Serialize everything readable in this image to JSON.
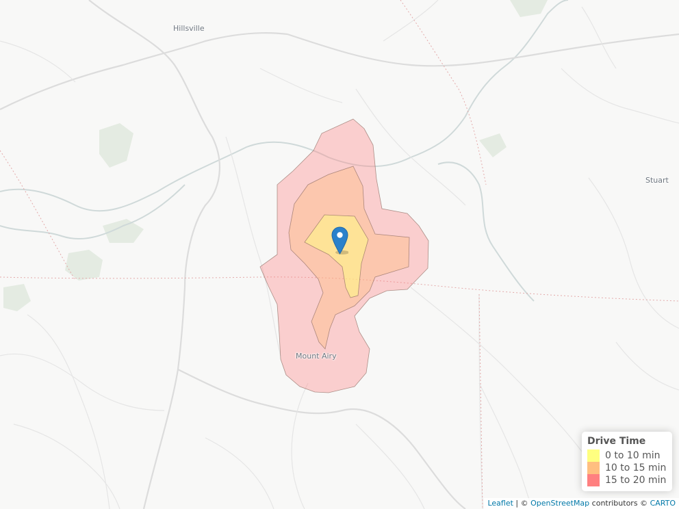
{
  "places": {
    "hillsville": "Hillsville",
    "stuart": "Stuart",
    "mount_airy": "Mount Airy"
  },
  "legend": {
    "title": "Drive Time",
    "items": [
      {
        "label": "0 to 10 min",
        "color": "#ffff80"
      },
      {
        "label": "10 to 15 min",
        "color": "#ffbf80"
      },
      {
        "label": "15 to 20 min",
        "color": "#ff8080"
      }
    ]
  },
  "isochrones": [
    {
      "range": "15 to 20 min",
      "fill": "#ff8080",
      "stroke": "#8a6a60"
    },
    {
      "range": "10 to 15 min",
      "fill": "#ffbf80",
      "stroke": "#8a6a60"
    },
    {
      "range": "0 to 10 min",
      "fill": "#ffff80",
      "stroke": "#8a6a60"
    }
  ],
  "marker": {
    "color": "#2a81cb",
    "icon": "map-pin-icon"
  },
  "attribution": {
    "leaflet": "Leaflet",
    "sep1": " | © ",
    "osm": "OpenStreetMap",
    "contributors": " contributors © ",
    "carto": "CARTO"
  }
}
